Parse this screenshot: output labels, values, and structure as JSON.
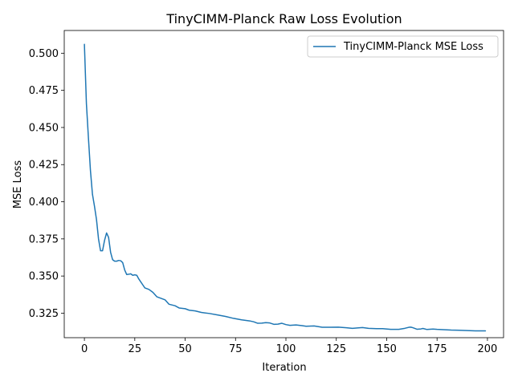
{
  "chart_data": {
    "type": "line",
    "title": "TinyCIMM-Planck Raw Loss Evolution",
    "xlabel": "Iteration",
    "ylabel": "MSE Loss",
    "xlim": [
      -10,
      208
    ],
    "ylim": [
      0.3085,
      0.5153
    ],
    "xticks": [
      0,
      25,
      50,
      75,
      100,
      125,
      150,
      175,
      200
    ],
    "yticks": [
      0.325,
      0.35,
      0.375,
      0.4,
      0.425,
      0.45,
      0.475,
      0.5
    ],
    "grid": false,
    "legend": "top-right",
    "series": [
      {
        "name": "TinyCIMM-Planck MSE Loss",
        "color": "#1f77b4",
        "points": [
          [
            0,
            0.506
          ],
          [
            1,
            0.466
          ],
          [
            2,
            0.443
          ],
          [
            3,
            0.421
          ],
          [
            4,
            0.405
          ],
          [
            5,
            0.397
          ],
          [
            6,
            0.388
          ],
          [
            7,
            0.375
          ],
          [
            8,
            0.367
          ],
          [
            9,
            0.367
          ],
          [
            10,
            0.374
          ],
          [
            11,
            0.379
          ],
          [
            12,
            0.376
          ],
          [
            13,
            0.366
          ],
          [
            14,
            0.361
          ],
          [
            15,
            0.36
          ],
          [
            16,
            0.36
          ],
          [
            17,
            0.3605
          ],
          [
            18,
            0.3603
          ],
          [
            19,
            0.359
          ],
          [
            20,
            0.354
          ],
          [
            21,
            0.351
          ],
          [
            22,
            0.3512
          ],
          [
            23,
            0.3515
          ],
          [
            24,
            0.3505
          ],
          [
            25,
            0.3508
          ],
          [
            26,
            0.3505
          ],
          [
            27,
            0.348
          ],
          [
            28,
            0.346
          ],
          [
            29,
            0.344
          ],
          [
            30,
            0.342
          ],
          [
            32,
            0.341
          ],
          [
            34,
            0.339
          ],
          [
            36,
            0.336
          ],
          [
            38,
            0.335
          ],
          [
            40,
            0.334
          ],
          [
            42,
            0.331
          ],
          [
            45,
            0.33
          ],
          [
            47,
            0.3285
          ],
          [
            50,
            0.328
          ],
          [
            52,
            0.327
          ],
          [
            55,
            0.3265
          ],
          [
            58,
            0.3255
          ],
          [
            62,
            0.3248
          ],
          [
            66,
            0.3238
          ],
          [
            70,
            0.3228
          ],
          [
            74,
            0.3215
          ],
          [
            78,
            0.3205
          ],
          [
            82,
            0.3198
          ],
          [
            84,
            0.3192
          ],
          [
            86,
            0.3182
          ],
          [
            88,
            0.3183
          ],
          [
            90,
            0.3186
          ],
          [
            92,
            0.3184
          ],
          [
            94,
            0.3175
          ],
          [
            96,
            0.3176
          ],
          [
            98,
            0.3182
          ],
          [
            100,
            0.3173
          ],
          [
            102,
            0.3168
          ],
          [
            105,
            0.3171
          ],
          [
            108,
            0.3166
          ],
          [
            110,
            0.3162
          ],
          [
            114,
            0.3164
          ],
          [
            118,
            0.3155
          ],
          [
            122,
            0.3155
          ],
          [
            126,
            0.3156
          ],
          [
            130,
            0.3152
          ],
          [
            133,
            0.3148
          ],
          [
            136,
            0.3151
          ],
          [
            138,
            0.3153
          ],
          [
            141,
            0.3148
          ],
          [
            145,
            0.3146
          ],
          [
            148,
            0.3146
          ],
          [
            152,
            0.3141
          ],
          [
            156,
            0.3141
          ],
          [
            159,
            0.3148
          ],
          [
            161,
            0.3155
          ],
          [
            162,
            0.3156
          ],
          [
            163,
            0.3152
          ],
          [
            165,
            0.3142
          ],
          [
            167,
            0.3144
          ],
          [
            168,
            0.3147
          ],
          [
            170,
            0.314
          ],
          [
            173,
            0.3143
          ],
          [
            175,
            0.3141
          ],
          [
            178,
            0.3139
          ],
          [
            182,
            0.3136
          ],
          [
            186,
            0.3135
          ],
          [
            190,
            0.3133
          ],
          [
            194,
            0.3131
          ],
          [
            199,
            0.3131
          ]
        ]
      }
    ]
  }
}
